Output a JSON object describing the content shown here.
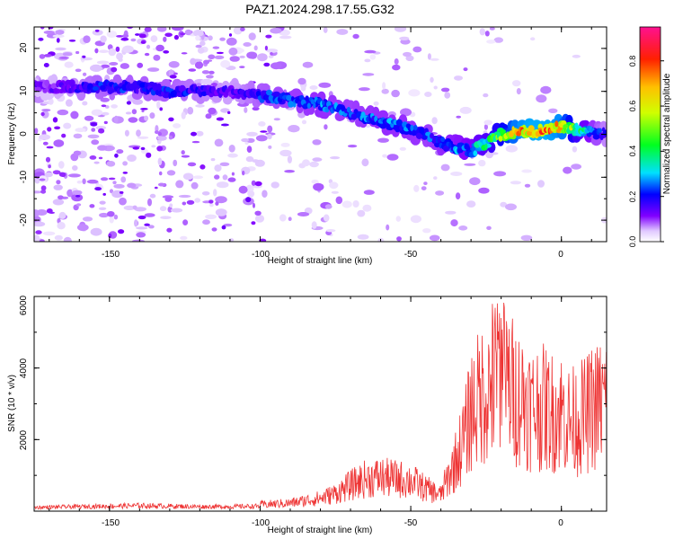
{
  "title": "PAZ1.2024.298.17.55.G32",
  "chart_data": [
    {
      "type": "heatmap",
      "xlabel": "Height of straight line (km)",
      "ylabel": "Frequency (Hz)",
      "xlim": [
        -175,
        15
      ],
      "ylim": [
        -25,
        25
      ],
      "xticks": [
        "-150",
        "-100",
        "-50",
        "0"
      ],
      "yticks": [
        "-20",
        "-10",
        "0",
        "10",
        "20"
      ],
      "colorbar": {
        "label": "Normalized spectral amplitude",
        "range": [
          0,
          0.95
        ],
        "ticks": [
          "0.0",
          "0.2",
          "0.4",
          "0.6",
          "0.8"
        ]
      },
      "ridge": {
        "x": [
          -170,
          -160,
          -150,
          -140,
          -130,
          -120,
          -110,
          -100,
          -90,
          -80,
          -70,
          -60,
          -50,
          -45,
          -40,
          -35,
          -30,
          -25,
          -20,
          -15,
          -10,
          -5,
          0,
          5,
          10,
          15
        ],
        "frequency_hz": [
          11,
          11,
          11,
          11,
          10,
          10,
          10,
          9,
          8,
          7,
          5,
          3,
          1,
          0,
          -2,
          -3,
          -4,
          -2,
          0,
          0.5,
          0.5,
          1,
          2,
          1,
          0.5,
          0
        ],
        "amplitude": [
          0.15,
          0.22,
          0.25,
          0.25,
          0.25,
          0.22,
          0.18,
          0.25,
          0.28,
          0.3,
          0.28,
          0.3,
          0.3,
          0.28,
          0.3,
          0.32,
          0.35,
          0.45,
          0.6,
          0.8,
          0.85,
          0.85,
          0.8,
          0.5,
          0.3,
          0.2
        ]
      }
    },
    {
      "type": "line",
      "xlabel": "Height of straight line (km)",
      "ylabel": "SNR (10 * v/v)",
      "xlim": [
        -175,
        15
      ],
      "ylim": [
        0,
        6000
      ],
      "xticks": [
        "-150",
        "-100",
        "-50",
        "0"
      ],
      "yticks": [
        "2000",
        "4000",
        "6000"
      ],
      "series": [
        {
          "color": "#ee3333",
          "x": [
            -175,
            -170,
            -160,
            -150,
            -140,
            -130,
            -120,
            -110,
            -100,
            -90,
            -80,
            -75,
            -70,
            -65,
            -60,
            -55,
            -50,
            -45,
            -40,
            -35,
            -32,
            -30,
            -28,
            -25,
            -22,
            -20,
            -18,
            -15,
            -12,
            -10,
            -8,
            -5,
            -3,
            0,
            3,
            5,
            8,
            10,
            12,
            15
          ],
          "y": [
            150,
            160,
            180,
            200,
            220,
            200,
            180,
            180,
            200,
            250,
            400,
            550,
            800,
            1000,
            1050,
            1000,
            950,
            700,
            500,
            1500,
            2200,
            3000,
            3200,
            3600,
            3500,
            3900,
            3800,
            3400,
            3300,
            3000,
            3100,
            3000,
            2900,
            2950,
            2600,
            2700,
            2800,
            3000,
            3100,
            3300
          ]
        }
      ]
    }
  ]
}
